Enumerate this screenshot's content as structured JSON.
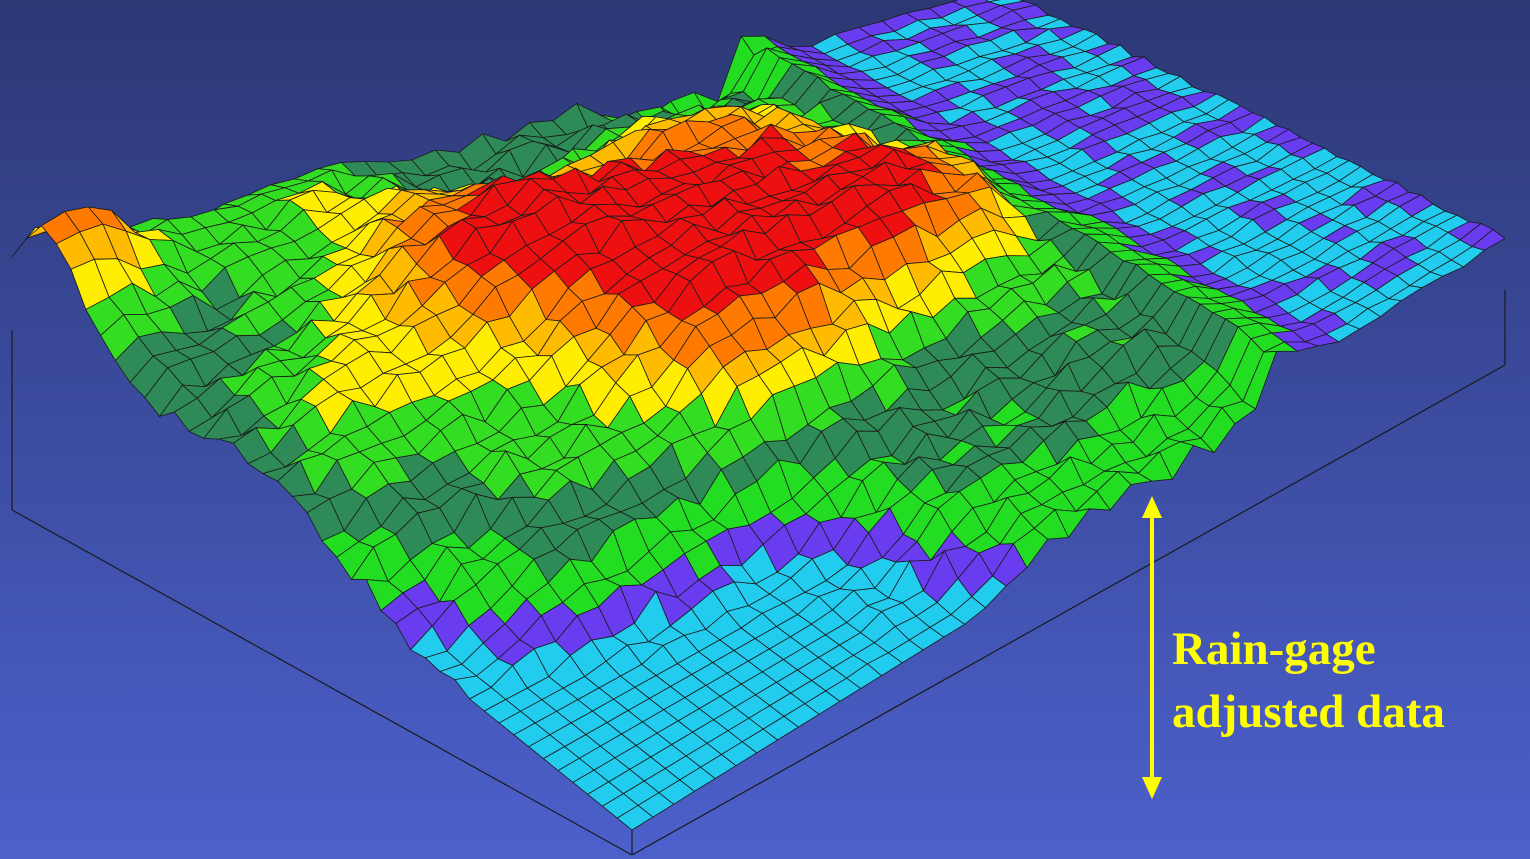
{
  "annotation": {
    "lines": [
      "Rain-gage",
      "adjusted data"
    ]
  }
}
